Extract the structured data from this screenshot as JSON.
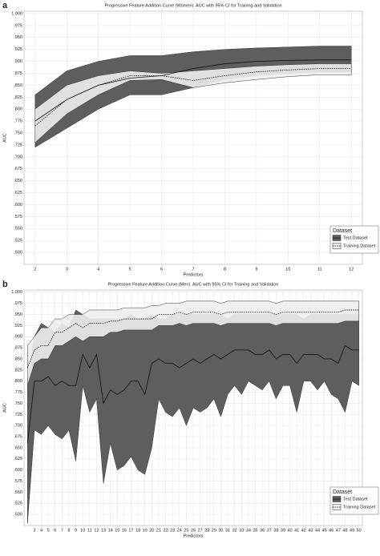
{
  "chart_data": [
    {
      "type": "line_ci",
      "panel_label": "a",
      "title": "Progressive Feature Addition Curve (Women). AUC with 95% CI for Training and Validation",
      "xlabel": "Predictors",
      "ylabel": "AUC",
      "legend_title": "Dataset",
      "legend": "bottom-right",
      "grid": true,
      "x": [
        2,
        3,
        4,
        5,
        6,
        7,
        8,
        9,
        10,
        11,
        12
      ],
      "xlim": [
        1.65,
        12.35
      ],
      "xticks": [
        2,
        3,
        4,
        5,
        6,
        7,
        8,
        9,
        10,
        11,
        12
      ],
      "ylim": [
        0.475,
        1.005
      ],
      "yticks": [
        {
          "value": 0.5,
          "label": ".500"
        },
        {
          "value": 0.525,
          "label": ".525"
        },
        {
          "value": 0.55,
          "label": ".550"
        },
        {
          "value": 0.575,
          "label": ".575"
        },
        {
          "value": 0.6,
          "label": ".600"
        },
        {
          "value": 0.625,
          "label": ".625"
        },
        {
          "value": 0.65,
          "label": ".650"
        },
        {
          "value": 0.675,
          "label": ".675"
        },
        {
          "value": 0.7,
          "label": ".700"
        },
        {
          "value": 0.725,
          "label": ".725"
        },
        {
          "value": 0.75,
          "label": ".750"
        },
        {
          "value": 0.775,
          "label": ".775"
        },
        {
          "value": 0.8,
          "label": ".800"
        },
        {
          "value": 0.825,
          "label": ".825"
        },
        {
          "value": 0.85,
          "label": ".850"
        },
        {
          "value": 0.875,
          "label": ".875"
        },
        {
          "value": 0.9,
          "label": ".900"
        },
        {
          "value": 0.925,
          "label": ".925"
        },
        {
          "value": 0.95,
          "label": ".950"
        },
        {
          "value": 0.975,
          "label": ".975"
        },
        {
          "value": 1.0,
          "label": "1.000"
        }
      ],
      "series": [
        {
          "name": "Test Dataset",
          "color": "#5e5e5e",
          "line_style": "solid",
          "values": [
            0.775,
            0.82,
            0.85,
            0.865,
            0.87,
            0.885,
            0.895,
            0.9,
            0.902,
            0.903,
            0.903
          ],
          "upper": [
            0.83,
            0.88,
            0.9,
            0.912,
            0.912,
            0.92,
            0.925,
            0.928,
            0.93,
            0.932,
            0.932
          ],
          "lower": [
            0.72,
            0.76,
            0.8,
            0.83,
            0.83,
            0.845,
            0.862,
            0.87,
            0.875,
            0.878,
            0.878
          ]
        },
        {
          "name": "Training Dataset",
          "color": "#eeeeee",
          "line_style": "dotted",
          "values": [
            0.765,
            0.82,
            0.85,
            0.87,
            0.87,
            0.86,
            0.87,
            0.878,
            0.882,
            0.885,
            0.885
          ],
          "upper": [
            0.8,
            0.85,
            0.87,
            0.88,
            0.875,
            0.88,
            0.885,
            0.89,
            0.893,
            0.895,
            0.895
          ],
          "lower": [
            0.73,
            0.79,
            0.83,
            0.86,
            0.862,
            0.845,
            0.855,
            0.862,
            0.868,
            0.872,
            0.872
          ]
        }
      ]
    },
    {
      "type": "line_ci",
      "panel_label": "b",
      "title": "Progressive Feature Addition Curve (Men). AUC with 95% CI for Training and Validation",
      "xlabel": "Predictors",
      "ylabel": "AUC",
      "legend_title": "Dataset",
      "legend": "bottom-right",
      "grid": true,
      "x": [
        2,
        3,
        4,
        5,
        6,
        7,
        8,
        9,
        10,
        11,
        12,
        13,
        14,
        15,
        16,
        17,
        18,
        19,
        20,
        21,
        22,
        23,
        24,
        25,
        26,
        27,
        28,
        29,
        30,
        31,
        32,
        33,
        34,
        35,
        36,
        37,
        38,
        39,
        40,
        41,
        42,
        43,
        44,
        45,
        46,
        47,
        48,
        49,
        50
      ],
      "xlim": [
        1.5,
        50.5
      ],
      "xticks": [
        3,
        4,
        5,
        6,
        7,
        8,
        9,
        10,
        11,
        12,
        13,
        14,
        15,
        16,
        17,
        18,
        19,
        20,
        21,
        22,
        23,
        24,
        25,
        26,
        27,
        28,
        29,
        30,
        31,
        32,
        33,
        34,
        35,
        36,
        37,
        38,
        39,
        40,
        41,
        42,
        43,
        44,
        45,
        46,
        47,
        48,
        49,
        50
      ],
      "ylim": [
        0.475,
        1.005
      ],
      "yticks": [
        {
          "value": 0.5,
          "label": ".500"
        },
        {
          "value": 0.525,
          "label": ".525"
        },
        {
          "value": 0.55,
          "label": ".550"
        },
        {
          "value": 0.575,
          "label": ".575"
        },
        {
          "value": 0.6,
          "label": ".600"
        },
        {
          "value": 0.625,
          "label": ".625"
        },
        {
          "value": 0.65,
          "label": ".650"
        },
        {
          "value": 0.675,
          "label": ".675"
        },
        {
          "value": 0.7,
          "label": ".700"
        },
        {
          "value": 0.725,
          "label": ".725"
        },
        {
          "value": 0.75,
          "label": ".750"
        },
        {
          "value": 0.775,
          "label": ".775"
        },
        {
          "value": 0.8,
          "label": ".800"
        },
        {
          "value": 0.825,
          "label": ".825"
        },
        {
          "value": 0.85,
          "label": ".850"
        },
        {
          "value": 0.875,
          "label": ".875"
        },
        {
          "value": 0.9,
          "label": ".900"
        },
        {
          "value": 0.925,
          "label": ".925"
        },
        {
          "value": 0.95,
          "label": ".950"
        },
        {
          "value": 0.975,
          "label": ".975"
        },
        {
          "value": 1.0,
          "label": "1.000"
        }
      ],
      "series": [
        {
          "name": "Test Dataset",
          "color": "#5e5e5e",
          "line_style": "solid",
          "values": [
            0.66,
            0.8,
            0.8,
            0.81,
            0.79,
            0.8,
            0.79,
            0.79,
            0.86,
            0.83,
            0.86,
            0.75,
            0.78,
            0.77,
            0.78,
            0.8,
            0.8,
            0.77,
            0.84,
            0.85,
            0.84,
            0.84,
            0.83,
            0.84,
            0.85,
            0.84,
            0.85,
            0.86,
            0.85,
            0.86,
            0.87,
            0.87,
            0.87,
            0.86,
            0.86,
            0.87,
            0.85,
            0.86,
            0.86,
            0.84,
            0.86,
            0.86,
            0.86,
            0.85,
            0.85,
            0.84,
            0.88,
            0.87,
            0.87
          ],
          "upper": [
            0.8,
            0.9,
            0.93,
            0.92,
            0.91,
            0.93,
            0.92,
            0.96,
            0.95,
            0.94,
            0.94,
            0.94,
            0.94,
            0.94,
            0.94,
            0.95,
            0.94,
            0.94,
            0.95,
            0.94,
            0.94,
            0.95,
            0.95,
            0.95,
            0.95,
            0.95,
            0.95,
            0.95,
            0.95,
            0.94,
            0.95,
            0.95,
            0.95,
            0.95,
            0.95,
            0.95,
            0.95,
            0.95,
            0.95,
            0.95,
            0.94,
            0.95,
            0.95,
            0.95,
            0.95,
            0.95,
            0.95,
            0.95,
            0.95
          ],
          "lower": [
            0.48,
            0.69,
            0.68,
            0.7,
            0.68,
            0.67,
            0.69,
            0.62,
            0.79,
            0.73,
            0.76,
            0.57,
            0.66,
            0.6,
            0.61,
            0.63,
            0.6,
            0.59,
            0.65,
            0.76,
            0.73,
            0.72,
            0.74,
            0.7,
            0.74,
            0.73,
            0.74,
            0.76,
            0.72,
            0.77,
            0.79,
            0.77,
            0.8,
            0.79,
            0.78,
            0.8,
            0.76,
            0.79,
            0.79,
            0.73,
            0.8,
            0.8,
            0.78,
            0.8,
            0.77,
            0.76,
            0.73,
            0.8,
            0.79
          ]
        },
        {
          "name": "Training Dataset",
          "color": "#eeeeee",
          "line_style": "dotted",
          "values": [
            0.83,
            0.87,
            0.88,
            0.88,
            0.91,
            0.91,
            0.92,
            0.93,
            0.92,
            0.93,
            0.93,
            0.93,
            0.935,
            0.935,
            0.94,
            0.94,
            0.94,
            0.94,
            0.94,
            0.95,
            0.95,
            0.95,
            0.955,
            0.95,
            0.955,
            0.955,
            0.955,
            0.955,
            0.95,
            0.955,
            0.955,
            0.955,
            0.955,
            0.955,
            0.955,
            0.955,
            0.95,
            0.955,
            0.955,
            0.955,
            0.955,
            0.955,
            0.955,
            0.955,
            0.955,
            0.955,
            0.96,
            0.96,
            0.96
          ],
          "upper": [
            0.88,
            0.9,
            0.92,
            0.92,
            0.94,
            0.94,
            0.95,
            0.95,
            0.95,
            0.96,
            0.96,
            0.96,
            0.96,
            0.96,
            0.965,
            0.965,
            0.965,
            0.965,
            0.97,
            0.97,
            0.975,
            0.975,
            0.975,
            0.98,
            0.98,
            0.98,
            0.98,
            0.98,
            0.975,
            0.98,
            0.98,
            0.98,
            0.98,
            0.98,
            0.98,
            0.98,
            0.975,
            0.98,
            0.98,
            0.98,
            0.98,
            0.98,
            0.98,
            0.98,
            0.98,
            0.98,
            0.98,
            0.98,
            0.98
          ],
          "lower": [
            0.79,
            0.84,
            0.85,
            0.85,
            0.88,
            0.88,
            0.89,
            0.9,
            0.89,
            0.9,
            0.9,
            0.9,
            0.91,
            0.91,
            0.915,
            0.915,
            0.915,
            0.915,
            0.915,
            0.925,
            0.925,
            0.925,
            0.93,
            0.925,
            0.93,
            0.93,
            0.93,
            0.93,
            0.925,
            0.93,
            0.93,
            0.93,
            0.93,
            0.93,
            0.93,
            0.93,
            0.925,
            0.93,
            0.93,
            0.93,
            0.93,
            0.93,
            0.93,
            0.93,
            0.93,
            0.93,
            0.935,
            0.935,
            0.935
          ]
        }
      ]
    }
  ]
}
